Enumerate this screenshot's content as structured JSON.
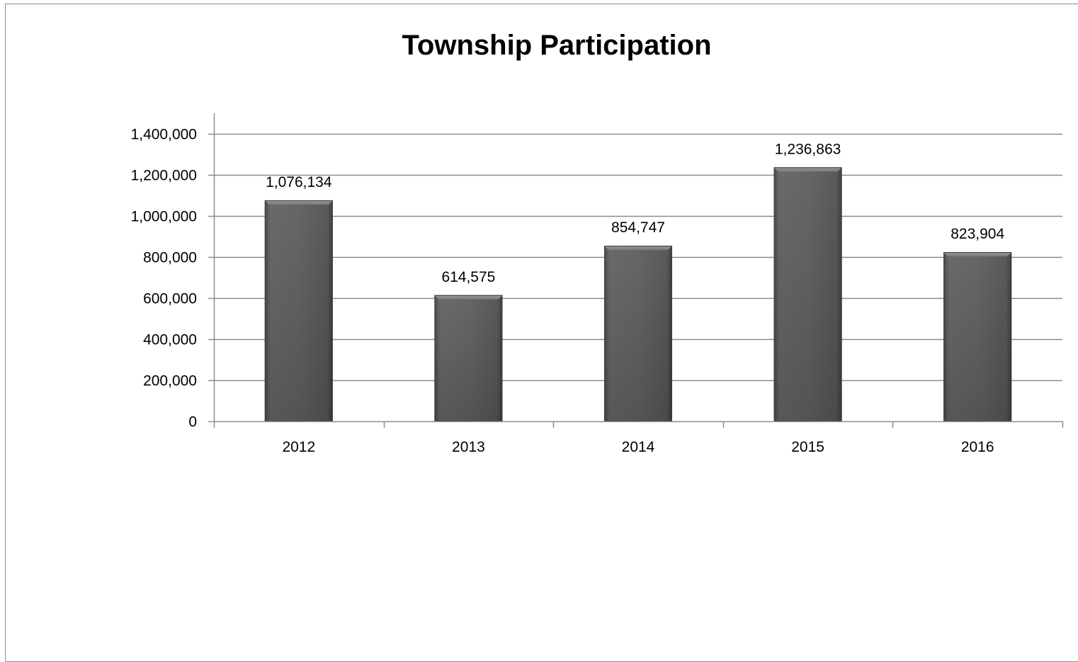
{
  "chart_data": {
    "type": "bar",
    "title": "Township Participation",
    "categories": [
      "2012",
      "2013",
      "2014",
      "2015",
      "2016"
    ],
    "values": [
      1076134,
      614575,
      854747,
      1236863,
      823904
    ],
    "value_labels": [
      "1,076,134",
      "614,575",
      "854,747",
      "1,236,863",
      "823,904"
    ],
    "ylim": [
      0,
      1400000
    ],
    "yticks": [
      0,
      200000,
      400000,
      600000,
      800000,
      1000000,
      1200000,
      1400000
    ],
    "ytick_labels": [
      "0",
      "200,000",
      "400,000",
      "600,000",
      "800,000",
      "1,000,000",
      "1,200,000",
      "1,400,000"
    ],
    "xlabel": "",
    "ylabel": "",
    "grid": true,
    "legend": "none",
    "bar_color": "#5f5f5f"
  }
}
